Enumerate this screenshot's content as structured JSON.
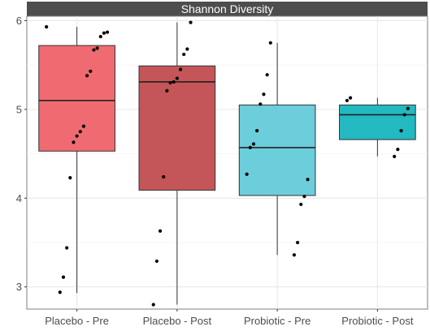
{
  "chart_data": {
    "type": "boxplot",
    "title": "Shannon Diversity",
    "xlabel": "",
    "ylabel": "",
    "ylim": [
      2.75,
      6.05
    ],
    "yticks": [
      3,
      4,
      5,
      6
    ],
    "grid": true,
    "legend": "none",
    "categories": [
      "Placebo - Pre",
      "Placebo - Post",
      "Probiotic - Pre",
      "Probiotic - Post"
    ],
    "colors": [
      "#f06b71",
      "#c45558",
      "#6ccddb",
      "#22b9c0"
    ],
    "boxes": [
      {
        "category": "Placebo - Pre",
        "whisker_low": 2.93,
        "q1": 4.53,
        "median": 5.1,
        "q3": 5.72,
        "whisker_high": 5.93
      },
      {
        "category": "Placebo - Post",
        "whisker_low": 2.8,
        "q1": 4.09,
        "median": 5.31,
        "q3": 5.49,
        "whisker_high": 5.98
      },
      {
        "category": "Probiotic - Pre",
        "whisker_low": 3.36,
        "q1": 4.03,
        "median": 4.57,
        "q3": 5.05,
        "whisker_high": 5.75
      },
      {
        "category": "Probiotic - Post",
        "whisker_low": 4.47,
        "q1": 4.66,
        "median": 4.94,
        "q3": 5.05,
        "whisker_high": 5.13
      }
    ],
    "points": [
      {
        "category": "Placebo - Pre",
        "values": [
          5.93,
          5.87,
          5.86,
          5.82,
          5.69,
          5.67,
          5.43,
          5.38,
          4.81,
          4.75,
          4.7,
          4.63,
          4.23,
          3.44,
          3.11,
          2.94
        ]
      },
      {
        "category": "Placebo - Post",
        "values": [
          5.98,
          5.68,
          5.62,
          5.45,
          5.35,
          5.31,
          5.3,
          5.21,
          4.24,
          3.63,
          3.29,
          2.8
        ]
      },
      {
        "category": "Probiotic - Pre",
        "values": [
          5.75,
          5.39,
          5.17,
          5.06,
          4.76,
          4.61,
          4.57,
          4.27,
          4.21,
          4.02,
          3.93,
          3.5,
          3.36
        ]
      },
      {
        "category": "Probiotic - Post",
        "values": [
          5.13,
          5.1,
          5.01,
          4.94,
          4.76,
          4.55,
          4.47
        ]
      }
    ]
  }
}
